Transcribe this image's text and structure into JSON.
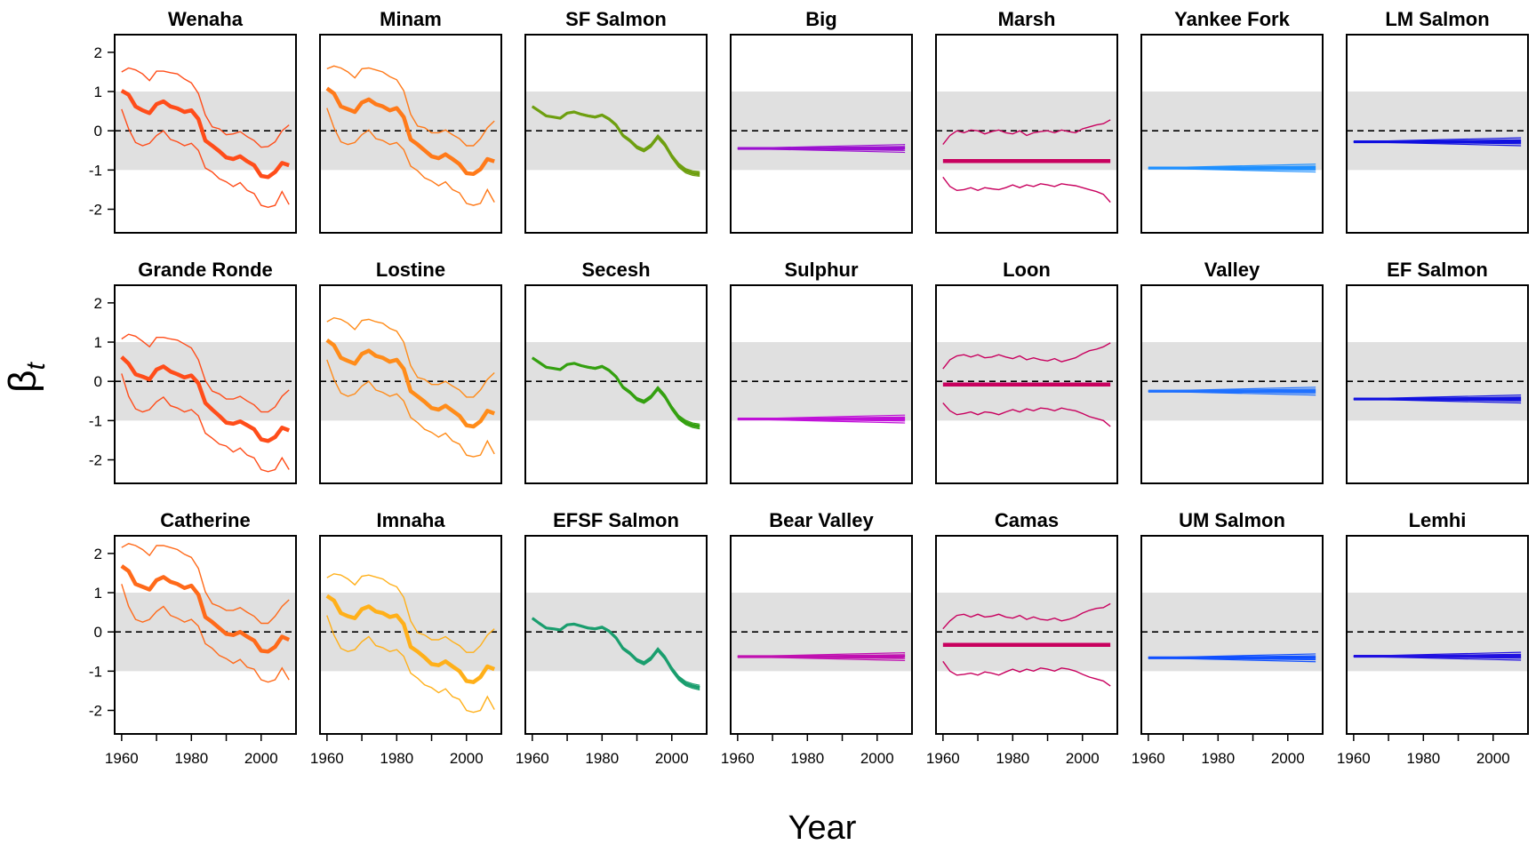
{
  "figure": {
    "xlabel": "Year",
    "ylabel_main": "β",
    "ylabel_sub": "t"
  },
  "chart_data": {
    "type": "line",
    "layout": "small-multiples 3 rows x 7 columns",
    "x_ticks": [
      1960,
      1980,
      2000
    ],
    "y_ticks": [
      -2,
      -1,
      0,
      1,
      2
    ],
    "xlim": [
      1958,
      2010
    ],
    "ylim": [
      -2.6,
      2.45
    ],
    "reference_line_y": 0,
    "shaded_band": [
      -1,
      1
    ],
    "shaded_band_color": "#e0e0e0",
    "x": [
      1960,
      1962,
      1964,
      1966,
      1968,
      1970,
      1972,
      1974,
      1976,
      1978,
      1980,
      1982,
      1984,
      1986,
      1988,
      1990,
      1992,
      1994,
      1996,
      1998,
      2000,
      2002,
      2004,
      2006,
      2008
    ],
    "panels": [
      {
        "title": "Wenaha",
        "color": "#ff4d1a",
        "style": "band",
        "mean": [
          1.02,
          0.92,
          0.62,
          0.52,
          0.45,
          0.68,
          0.75,
          0.62,
          0.57,
          0.48,
          0.52,
          0.3,
          -0.25,
          -0.38,
          -0.52,
          -0.68,
          -0.72,
          -0.65,
          -0.78,
          -0.88,
          -1.15,
          -1.18,
          -1.05,
          -0.82,
          -0.88
        ],
        "upper": [
          1.5,
          1.6,
          1.55,
          1.45,
          1.28,
          1.52,
          1.52,
          1.48,
          1.45,
          1.32,
          1.22,
          0.95,
          0.4,
          0.1,
          0.05,
          -0.1,
          -0.08,
          -0.02,
          -0.15,
          -0.25,
          -0.42,
          -0.4,
          -0.28,
          0.0,
          0.15
        ],
        "lower": [
          0.55,
          0.05,
          -0.3,
          -0.38,
          -0.32,
          -0.12,
          0.0,
          -0.22,
          -0.28,
          -0.38,
          -0.32,
          -0.5,
          -0.95,
          -1.05,
          -1.22,
          -1.3,
          -1.42,
          -1.32,
          -1.52,
          -1.6,
          -1.9,
          -1.95,
          -1.9,
          -1.55,
          -1.88
        ]
      },
      {
        "title": "Minam",
        "color": "#ff7a1a",
        "style": "band",
        "mean": [
          1.08,
          0.95,
          0.62,
          0.55,
          0.48,
          0.72,
          0.8,
          0.68,
          0.62,
          0.52,
          0.58,
          0.35,
          -0.22,
          -0.35,
          -0.5,
          -0.65,
          -0.7,
          -0.6,
          -0.72,
          -0.85,
          -1.08,
          -1.1,
          -0.98,
          -0.72,
          -0.78
        ],
        "upper": [
          1.58,
          1.65,
          1.6,
          1.5,
          1.35,
          1.58,
          1.6,
          1.55,
          1.5,
          1.38,
          1.3,
          1.02,
          0.42,
          0.12,
          0.08,
          -0.05,
          -0.05,
          0.02,
          -0.1,
          -0.2,
          -0.38,
          -0.38,
          -0.2,
          0.08,
          0.25
        ],
        "lower": [
          0.58,
          0.08,
          -0.28,
          -0.35,
          -0.3,
          -0.1,
          0.02,
          -0.2,
          -0.25,
          -0.35,
          -0.3,
          -0.48,
          -0.9,
          -1.02,
          -1.2,
          -1.28,
          -1.4,
          -1.3,
          -1.5,
          -1.58,
          -1.85,
          -1.9,
          -1.85,
          -1.5,
          -1.82
        ]
      },
      {
        "title": "SF Salmon",
        "color": "#6e9f10",
        "style": "tight",
        "mean": [
          0.62,
          0.5,
          0.38,
          0.35,
          0.32,
          0.45,
          0.48,
          0.42,
          0.38,
          0.35,
          0.4,
          0.3,
          0.15,
          -0.12,
          -0.25,
          -0.42,
          -0.5,
          -0.38,
          -0.15,
          -0.35,
          -0.65,
          -0.88,
          -1.02,
          -1.08,
          -1.1
        ]
      },
      {
        "title": "Big",
        "color": "#9b10d0",
        "style": "flat",
        "mean_level": -0.45,
        "spread": 0.1
      },
      {
        "title": "Marsh",
        "color": "#c8005e",
        "style": "band-flat",
        "mean_level": -0.77,
        "upper": [
          -0.35,
          -0.12,
          0.0,
          -0.05,
          0.02,
          0.0,
          -0.08,
          -0.02,
          0.02,
          -0.05,
          -0.08,
          0.0,
          -0.12,
          -0.05,
          -0.02,
          0.0,
          -0.05,
          0.02,
          -0.02,
          -0.05,
          0.05,
          0.1,
          0.15,
          0.18,
          0.28
        ],
        "lower": [
          -1.18,
          -1.42,
          -1.52,
          -1.5,
          -1.45,
          -1.52,
          -1.45,
          -1.48,
          -1.5,
          -1.45,
          -1.38,
          -1.45,
          -1.38,
          -1.42,
          -1.35,
          -1.38,
          -1.42,
          -1.35,
          -1.38,
          -1.4,
          -1.45,
          -1.5,
          -1.55,
          -1.62,
          -1.82
        ]
      },
      {
        "title": "Yankee Fork",
        "color": "#1e90ff",
        "style": "flat",
        "mean_level": -0.95,
        "spread": 0.1
      },
      {
        "title": "LM Salmon",
        "color": "#1010e0",
        "style": "flat",
        "mean_level": -0.28,
        "spread": 0.1
      },
      {
        "title": "Grande Ronde",
        "color": "#ff4d1a",
        "style": "band",
        "mean": [
          0.62,
          0.45,
          0.18,
          0.12,
          0.05,
          0.3,
          0.38,
          0.25,
          0.18,
          0.1,
          0.15,
          -0.05,
          -0.55,
          -0.72,
          -0.88,
          -1.05,
          -1.08,
          -1.02,
          -1.12,
          -1.22,
          -1.48,
          -1.52,
          -1.42,
          -1.18,
          -1.25
        ],
        "upper": [
          1.08,
          1.2,
          1.15,
          1.02,
          0.88,
          1.12,
          1.12,
          1.08,
          1.05,
          0.95,
          0.85,
          0.55,
          0.02,
          -0.25,
          -0.32,
          -0.45,
          -0.45,
          -0.38,
          -0.5,
          -0.6,
          -0.78,
          -0.78,
          -0.65,
          -0.38,
          -0.22
        ],
        "lower": [
          0.2,
          -0.38,
          -0.7,
          -0.78,
          -0.72,
          -0.52,
          -0.4,
          -0.62,
          -0.68,
          -0.78,
          -0.72,
          -0.88,
          -1.32,
          -1.45,
          -1.6,
          -1.65,
          -1.8,
          -1.7,
          -1.88,
          -1.95,
          -2.25,
          -2.3,
          -2.25,
          -1.95,
          -2.25
        ]
      },
      {
        "title": "Lostine",
        "color": "#ff8c1a",
        "style": "band",
        "mean": [
          1.05,
          0.92,
          0.6,
          0.52,
          0.45,
          0.7,
          0.78,
          0.65,
          0.6,
          0.5,
          0.55,
          0.32,
          -0.25,
          -0.38,
          -0.52,
          -0.68,
          -0.72,
          -0.62,
          -0.75,
          -0.88,
          -1.12,
          -1.15,
          -1.02,
          -0.75,
          -0.82
        ],
        "upper": [
          1.52,
          1.62,
          1.58,
          1.48,
          1.32,
          1.55,
          1.58,
          1.52,
          1.48,
          1.35,
          1.28,
          1.0,
          0.4,
          0.1,
          0.05,
          -0.08,
          -0.08,
          0.0,
          -0.12,
          -0.22,
          -0.4,
          -0.4,
          -0.22,
          0.05,
          0.22
        ],
        "lower": [
          0.55,
          0.05,
          -0.3,
          -0.38,
          -0.32,
          -0.12,
          0.0,
          -0.22,
          -0.28,
          -0.38,
          -0.32,
          -0.5,
          -0.92,
          -1.05,
          -1.22,
          -1.3,
          -1.42,
          -1.32,
          -1.52,
          -1.6,
          -1.88,
          -1.92,
          -1.88,
          -1.52,
          -1.85
        ]
      },
      {
        "title": "Secesh",
        "color": "#34a010",
        "style": "tight",
        "mean": [
          0.6,
          0.48,
          0.36,
          0.33,
          0.3,
          0.43,
          0.46,
          0.4,
          0.36,
          0.33,
          0.38,
          0.28,
          0.12,
          -0.15,
          -0.28,
          -0.45,
          -0.52,
          -0.4,
          -0.18,
          -0.38,
          -0.68,
          -0.92,
          -1.05,
          -1.12,
          -1.15
        ]
      },
      {
        "title": "Sulphur",
        "color": "#c010d8",
        "style": "flat",
        "mean_level": -0.96,
        "spread": 0.1
      },
      {
        "title": "Loon",
        "color": "#c8005e",
        "style": "band-flat",
        "mean_level": -0.08,
        "upper": [
          0.32,
          0.55,
          0.65,
          0.68,
          0.62,
          0.68,
          0.6,
          0.62,
          0.68,
          0.62,
          0.58,
          0.65,
          0.55,
          0.6,
          0.55,
          0.52,
          0.58,
          0.5,
          0.55,
          0.6,
          0.7,
          0.78,
          0.82,
          0.88,
          0.98
        ],
        "lower": [
          -0.55,
          -0.75,
          -0.85,
          -0.82,
          -0.78,
          -0.85,
          -0.78,
          -0.8,
          -0.85,
          -0.78,
          -0.72,
          -0.78,
          -0.7,
          -0.75,
          -0.68,
          -0.7,
          -0.75,
          -0.68,
          -0.72,
          -0.75,
          -0.82,
          -0.9,
          -0.95,
          -1.0,
          -1.15
        ]
      },
      {
        "title": "Valley",
        "color": "#1e70ff",
        "style": "flat",
        "mean_level": -0.25,
        "spread": 0.1
      },
      {
        "title": "EF Salmon",
        "color": "#1010e0",
        "style": "flat",
        "mean_level": -0.45,
        "spread": 0.1
      },
      {
        "title": "Catherine",
        "color": "#ff6a1a",
        "style": "band",
        "mean": [
          1.68,
          1.55,
          1.22,
          1.15,
          1.08,
          1.32,
          1.4,
          1.28,
          1.22,
          1.12,
          1.18,
          0.95,
          0.38,
          0.25,
          0.1,
          -0.05,
          -0.08,
          0.0,
          -0.12,
          -0.22,
          -0.48,
          -0.5,
          -0.38,
          -0.12,
          -0.2
        ],
        "upper": [
          2.15,
          2.25,
          2.2,
          2.1,
          1.95,
          2.2,
          2.2,
          2.15,
          2.1,
          1.98,
          1.9,
          1.62,
          1.02,
          0.72,
          0.65,
          0.55,
          0.55,
          0.62,
          0.5,
          0.4,
          0.22,
          0.22,
          0.4,
          0.65,
          0.82
        ],
        "lower": [
          1.22,
          0.65,
          0.32,
          0.25,
          0.32,
          0.52,
          0.65,
          0.42,
          0.35,
          0.25,
          0.32,
          0.15,
          -0.3,
          -0.42,
          -0.6,
          -0.68,
          -0.8,
          -0.7,
          -0.9,
          -0.95,
          -1.22,
          -1.28,
          -1.22,
          -0.92,
          -1.22
        ]
      },
      {
        "title": "Imnaha",
        "color": "#ffb01a",
        "style": "band",
        "mean": [
          0.92,
          0.8,
          0.48,
          0.4,
          0.35,
          0.58,
          0.65,
          0.52,
          0.48,
          0.38,
          0.42,
          0.2,
          -0.38,
          -0.5,
          -0.65,
          -0.82,
          -0.85,
          -0.75,
          -0.88,
          -1.0,
          -1.25,
          -1.28,
          -1.15,
          -0.88,
          -0.95
        ],
        "upper": [
          1.38,
          1.48,
          1.45,
          1.35,
          1.2,
          1.42,
          1.45,
          1.4,
          1.35,
          1.22,
          1.15,
          0.88,
          0.28,
          -0.02,
          -0.08,
          -0.2,
          -0.2,
          -0.12,
          -0.25,
          -0.35,
          -0.52,
          -0.52,
          -0.35,
          -0.08,
          0.08
        ],
        "lower": [
          0.42,
          -0.08,
          -0.42,
          -0.5,
          -0.45,
          -0.25,
          -0.12,
          -0.35,
          -0.4,
          -0.5,
          -0.45,
          -0.62,
          -1.05,
          -1.18,
          -1.35,
          -1.42,
          -1.55,
          -1.45,
          -1.65,
          -1.72,
          -2.0,
          -2.05,
          -2.0,
          -1.65,
          -1.98
        ]
      },
      {
        "title": "EFSF Salmon",
        "color": "#1a9e6e",
        "style": "tight",
        "mean": [
          0.35,
          0.22,
          0.1,
          0.08,
          0.05,
          0.18,
          0.2,
          0.15,
          0.1,
          0.08,
          0.12,
          0.02,
          -0.15,
          -0.42,
          -0.55,
          -0.72,
          -0.8,
          -0.68,
          -0.45,
          -0.65,
          -0.95,
          -1.18,
          -1.32,
          -1.38,
          -1.42
        ]
      },
      {
        "title": "Bear Valley",
        "color": "#c010b0",
        "style": "flat",
        "mean_level": -0.63,
        "spread": 0.1
      },
      {
        "title": "Camas",
        "color": "#c8005e",
        "style": "band-flat",
        "mean_level": -0.33,
        "upper": [
          0.08,
          0.28,
          0.42,
          0.45,
          0.38,
          0.45,
          0.38,
          0.4,
          0.45,
          0.38,
          0.35,
          0.42,
          0.32,
          0.38,
          0.32,
          0.3,
          0.35,
          0.28,
          0.32,
          0.38,
          0.48,
          0.55,
          0.6,
          0.62,
          0.72
        ],
        "lower": [
          -0.75,
          -1.0,
          -1.1,
          -1.08,
          -1.05,
          -1.1,
          -1.02,
          -1.05,
          -1.1,
          -1.02,
          -0.95,
          -1.02,
          -0.95,
          -1.0,
          -0.92,
          -0.95,
          -1.0,
          -0.92,
          -0.95,
          -1.0,
          -1.08,
          -1.15,
          -1.2,
          -1.25,
          -1.38
        ]
      },
      {
        "title": "UM Salmon",
        "color": "#1050ff",
        "style": "flat",
        "mean_level": -0.66,
        "spread": 0.1
      },
      {
        "title": "Lemhi",
        "color": "#2010e0",
        "style": "flat",
        "mean_level": -0.62,
        "spread": 0.1
      }
    ]
  }
}
